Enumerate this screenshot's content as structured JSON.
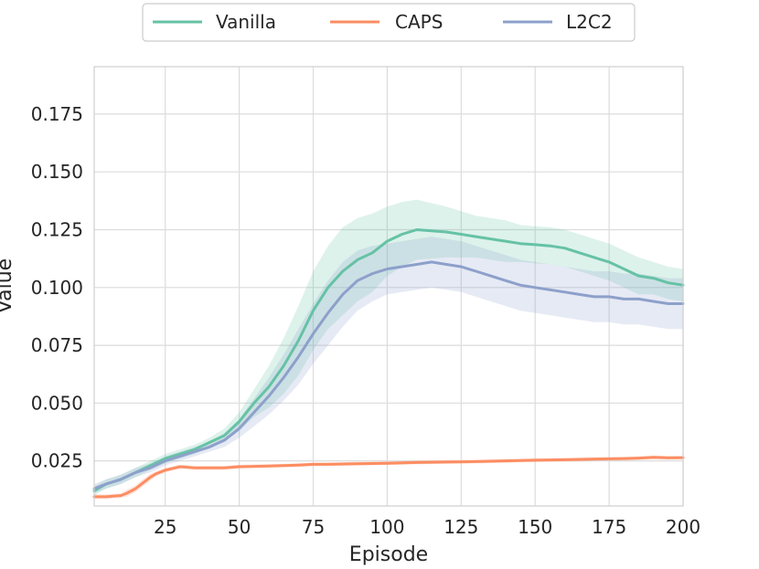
{
  "chart_data": {
    "type": "line",
    "title": "",
    "xlabel": "Episode",
    "ylabel": "Value",
    "xlim": [
      1,
      200
    ],
    "ylim": [
      0.0055,
      0.1955
    ],
    "x_ticks": [
      25,
      50,
      75,
      100,
      125,
      150,
      175,
      200
    ],
    "x_tick_labels": [
      "25",
      "50",
      "75",
      "100",
      "125",
      "150",
      "175",
      "200"
    ],
    "y_ticks": [
      0.025,
      0.05,
      0.075,
      0.1,
      0.125,
      0.15,
      0.175
    ],
    "y_tick_labels": [
      "0.025",
      "0.050",
      "0.075",
      "0.100",
      "0.125",
      "0.150",
      "0.175"
    ],
    "grid": true,
    "legend_position": "top-center",
    "series": [
      {
        "name": "Vanilla",
        "color": "#66c2a5",
        "x": [
          1,
          5,
          10,
          15,
          20,
          25,
          30,
          35,
          40,
          45,
          50,
          55,
          60,
          65,
          70,
          75,
          80,
          85,
          90,
          95,
          100,
          105,
          110,
          115,
          120,
          125,
          130,
          135,
          140,
          145,
          150,
          155,
          160,
          165,
          170,
          175,
          180,
          185,
          190,
          195,
          200
        ],
        "y": [
          0.012,
          0.015,
          0.017,
          0.02,
          0.023,
          0.026,
          0.028,
          0.03,
          0.033,
          0.036,
          0.042,
          0.05,
          0.057,
          0.066,
          0.077,
          0.09,
          0.1,
          0.107,
          0.112,
          0.115,
          0.12,
          0.123,
          0.125,
          0.1245,
          0.124,
          0.123,
          0.122,
          0.121,
          0.12,
          0.119,
          0.1185,
          0.118,
          0.117,
          0.115,
          0.113,
          0.111,
          0.108,
          0.105,
          0.104,
          0.102,
          0.101
        ],
        "band_halfwidth": [
          0.002,
          0.002,
          0.002,
          0.002,
          0.002,
          0.002,
          0.002,
          0.002,
          0.002,
          0.003,
          0.004,
          0.006,
          0.009,
          0.012,
          0.015,
          0.017,
          0.018,
          0.019,
          0.018,
          0.017,
          0.015,
          0.014,
          0.013,
          0.012,
          0.011,
          0.01,
          0.009,
          0.009,
          0.009,
          0.008,
          0.008,
          0.008,
          0.008,
          0.008,
          0.008,
          0.008,
          0.008,
          0.008,
          0.007,
          0.007,
          0.007
        ]
      },
      {
        "name": "CAPS",
        "color": "#fc8d62",
        "x": [
          1,
          5,
          10,
          12,
          15,
          18,
          20,
          22,
          25,
          30,
          35,
          40,
          45,
          50,
          60,
          70,
          75,
          80,
          90,
          100,
          110,
          120,
          130,
          140,
          150,
          160,
          170,
          180,
          185,
          190,
          195,
          200
        ],
        "y": [
          0.0095,
          0.0095,
          0.01,
          0.011,
          0.013,
          0.016,
          0.018,
          0.0195,
          0.021,
          0.0225,
          0.022,
          0.022,
          0.022,
          0.0225,
          0.0228,
          0.0232,
          0.0235,
          0.0235,
          0.0238,
          0.024,
          0.0243,
          0.0245,
          0.0247,
          0.025,
          0.0253,
          0.0255,
          0.0258,
          0.026,
          0.0262,
          0.0265,
          0.0263,
          0.0264
        ],
        "band_halfwidth": [
          0.001,
          0.001,
          0.001,
          0.0015,
          0.0015,
          0.0015,
          0.0015,
          0.001,
          0.001,
          0.0008,
          0.0008,
          0.0008,
          0.0008,
          0.0008,
          0.0008,
          0.0008,
          0.0008,
          0.0008,
          0.0008,
          0.0008,
          0.0008,
          0.0008,
          0.0008,
          0.0008,
          0.0008,
          0.0008,
          0.0008,
          0.0008,
          0.0008,
          0.0008,
          0.0008,
          0.0008
        ]
      },
      {
        "name": "L2C2",
        "color": "#8da0cb",
        "x": [
          1,
          5,
          10,
          15,
          20,
          25,
          30,
          35,
          40,
          45,
          50,
          55,
          60,
          65,
          70,
          75,
          80,
          85,
          90,
          95,
          100,
          105,
          110,
          115,
          120,
          125,
          130,
          135,
          140,
          145,
          150,
          155,
          160,
          165,
          170,
          175,
          180,
          185,
          190,
          195,
          200
        ],
        "y": [
          0.013,
          0.015,
          0.017,
          0.02,
          0.022,
          0.025,
          0.027,
          0.029,
          0.031,
          0.034,
          0.039,
          0.046,
          0.053,
          0.061,
          0.07,
          0.08,
          0.089,
          0.097,
          0.103,
          0.106,
          0.108,
          0.109,
          0.11,
          0.111,
          0.11,
          0.109,
          0.107,
          0.105,
          0.103,
          0.101,
          0.1,
          0.099,
          0.098,
          0.097,
          0.096,
          0.096,
          0.095,
          0.095,
          0.094,
          0.093,
          0.093
        ],
        "band_halfwidth": [
          0.002,
          0.002,
          0.002,
          0.002,
          0.002,
          0.002,
          0.002,
          0.002,
          0.002,
          0.003,
          0.004,
          0.006,
          0.008,
          0.01,
          0.012,
          0.013,
          0.014,
          0.014,
          0.013,
          0.012,
          0.011,
          0.011,
          0.011,
          0.011,
          0.011,
          0.011,
          0.011,
          0.011,
          0.011,
          0.011,
          0.011,
          0.011,
          0.011,
          0.011,
          0.011,
          0.011,
          0.011,
          0.011,
          0.011,
          0.011,
          0.011
        ]
      }
    ]
  }
}
